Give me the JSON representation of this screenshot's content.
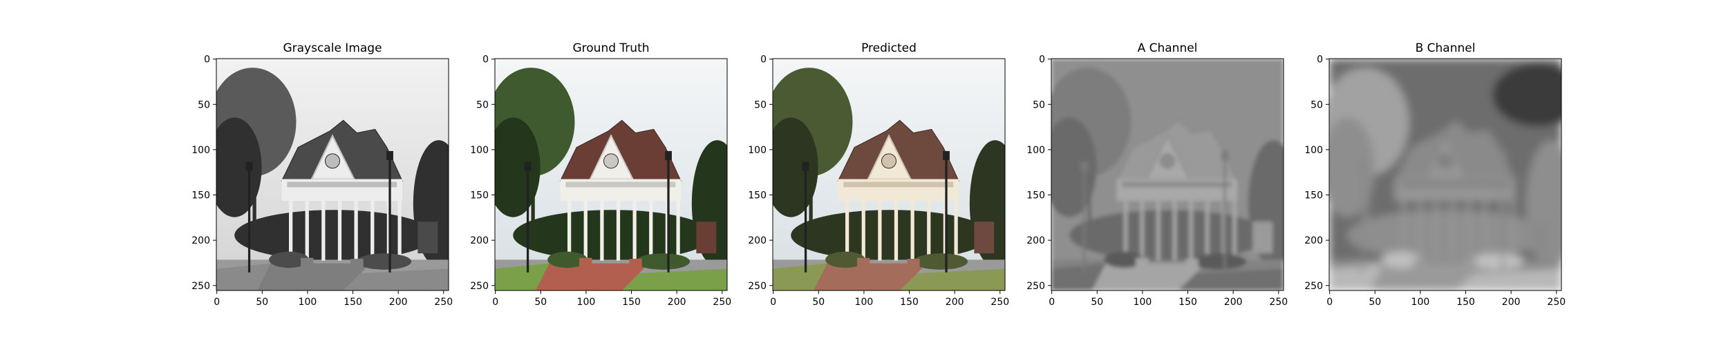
{
  "figure": {
    "panels": [
      {
        "id": "grayscale",
        "title": "Grayscale Image",
        "mode": "gray"
      },
      {
        "id": "ground-truth",
        "title": "Ground Truth",
        "mode": "color"
      },
      {
        "id": "predicted",
        "title": "Predicted",
        "mode": "pred"
      },
      {
        "id": "a-channel",
        "title": "A Channel",
        "mode": "achan"
      },
      {
        "id": "b-channel",
        "title": "B Channel",
        "mode": "bchan"
      }
    ],
    "x_ticks": [
      0,
      50,
      100,
      150,
      200,
      250
    ],
    "y_ticks": [
      0,
      50,
      100,
      150,
      200,
      250
    ],
    "x_tick_labels": [
      "0",
      "50",
      "100",
      "150",
      "200",
      "250"
    ],
    "y_tick_labels": [
      "0",
      "50",
      "100",
      "150",
      "200",
      "250"
    ],
    "image_extent": [
      256,
      256
    ]
  },
  "colors": {
    "sky": "#e8ecef",
    "roof": "#6a3d35",
    "trees": "#3e5a2e",
    "grass": "#7aa04a",
    "path": "#b35f4f",
    "pavilion": "#f0efe9",
    "road": "#9a9a9a"
  }
}
